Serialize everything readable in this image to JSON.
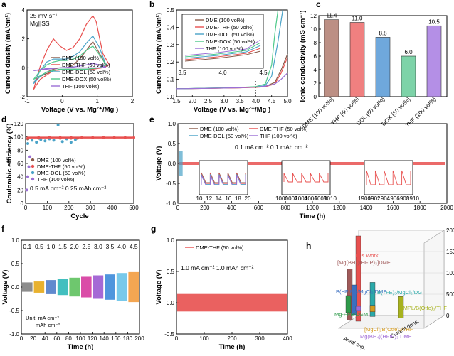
{
  "panel_letters": [
    "a",
    "b",
    "c",
    "d",
    "e",
    "f",
    "g",
    "h"
  ],
  "colors": {
    "dme": "#8b5a4a",
    "dme_thf": "#e8504f",
    "dme_dol": "#4aa3c8",
    "dme_dox": "#4ec98a",
    "thf": "#9b6fd6"
  },
  "chart_data": [
    {
      "panel": "a",
      "type": "line",
      "title": "",
      "annotations": [
        "25 mV s⁻¹",
        "Mg||SS"
      ],
      "xlabel": "Voltage (V vs. Mg²⁺/Mg )",
      "ylabel": "Current density (mA/cm²)",
      "xlim": [
        -1.2,
        2.0
      ],
      "ylim": [
        -2,
        4
      ],
      "xticks": [
        "-1",
        "0",
        "1",
        "2"
      ],
      "yticks": [
        "-2",
        "0",
        "2",
        "4"
      ],
      "legend_position": "center-right",
      "series": [
        {
          "name": "DME (100 vol%)",
          "color_key": "dme",
          "x": [
            -1.0,
            -0.8,
            -0.6,
            -0.4,
            -0.2,
            0.0,
            0.2,
            0.4,
            0.6,
            0.8,
            1.0,
            1.2,
            1.0,
            0.8,
            0.6,
            0.4,
            0.2,
            0.0,
            -0.4,
            -0.8,
            -1.0
          ],
          "y": [
            -1.0,
            -0.6,
            -0.3,
            -0.1,
            0.0,
            0.0,
            0.2,
            0.6,
            1.2,
            1.8,
            1.0,
            0.2,
            0.0,
            -0.1,
            -0.1,
            -0.1,
            -0.1,
            -0.1,
            -0.2,
            -0.6,
            -1.0
          ]
        },
        {
          "name": "DME-THF (50 vol%)",
          "color_key": "dme_thf",
          "x": [
            -1.0,
            -0.9,
            -0.8,
            -0.6,
            -0.4,
            -0.2,
            0.0,
            0.2,
            0.4,
            0.6,
            0.8,
            0.9,
            1.1,
            1.3,
            1.1,
            0.8,
            0.4,
            0.0,
            -0.4,
            -0.8,
            -1.0
          ],
          "y": [
            -1.5,
            -0.7,
            0.1,
            1.2,
            2.0,
            1.5,
            1.2,
            1.4,
            2.0,
            3.0,
            3.6,
            3.2,
            1.0,
            0.2,
            0.0,
            -0.1,
            -0.1,
            -0.1,
            -0.2,
            -0.8,
            -1.5
          ]
        },
        {
          "name": "DME-DOL (50 vol%)",
          "color_key": "dme_dol",
          "x": [
            -1.0,
            -0.8,
            -0.6,
            -0.4,
            -0.2,
            0.0,
            0.2,
            0.4,
            0.6,
            0.8,
            1.0,
            1.2,
            1.0,
            0.6,
            0.2,
            -0.2,
            -0.6,
            -0.8,
            -1.0
          ],
          "y": [
            -1.1,
            -0.2,
            0.4,
            0.6,
            0.6,
            0.6,
            0.8,
            1.1,
            1.7,
            2.2,
            1.4,
            0.2,
            0.0,
            -0.1,
            -0.1,
            -0.1,
            -0.3,
            -0.6,
            -1.1
          ]
        },
        {
          "name": "DME-DOX (50 vol%)",
          "color_key": "dme_dox",
          "x": [
            -1.0,
            -0.8,
            -0.6,
            -0.4,
            -0.2,
            0.0,
            0.2,
            0.4,
            0.6,
            0.8,
            1.0,
            1.2,
            1.0,
            0.6,
            0.2,
            -0.2,
            -0.6,
            -1.0
          ],
          "y": [
            -0.8,
            -0.2,
            0.2,
            0.4,
            0.5,
            0.5,
            0.6,
            0.8,
            1.2,
            1.5,
            0.9,
            0.2,
            0.0,
            -0.1,
            -0.1,
            -0.1,
            -0.3,
            -0.8
          ]
        },
        {
          "name": "THF (100 vol%)",
          "color_key": "thf",
          "x": [
            -1.0,
            -0.6,
            -0.2,
            0.2,
            0.6,
            0.8,
            1.0,
            1.2,
            1.0,
            0.6,
            0.2,
            -0.2,
            -0.6,
            -1.0
          ],
          "y": [
            -0.2,
            -0.1,
            0.0,
            0.05,
            0.2,
            0.3,
            0.2,
            0.05,
            0.0,
            0.0,
            0.0,
            0.0,
            -0.05,
            -0.2
          ]
        }
      ]
    },
    {
      "panel": "b",
      "type": "line",
      "xlabel": "Voltage (V vs. Mg²⁺/Mg )",
      "ylabel": "Current density (mA/cm²)",
      "xlim": [
        1.5,
        5.0
      ],
      "ylim": [
        -0.05,
        0.5
      ],
      "xticks": [
        "1.5",
        "2.0",
        "2.5",
        "3.0",
        "3.5",
        "4.0",
        "4.5",
        "5.0"
      ],
      "yticks": [
        "0.0",
        "0.1",
        "0.2",
        "0.3",
        "0.4",
        "0.5"
      ],
      "inset_xticks": [
        "3.5",
        "4.0",
        "4.5"
      ],
      "inset_xlim": [
        3.5,
        4.5
      ],
      "legend_position": "top-left",
      "series": [
        {
          "name": "DME (100 vol%)",
          "color_key": "dme",
          "x": [
            1.5,
            2.5,
            3.5,
            4.0,
            4.3,
            4.6,
            4.8,
            5.0
          ],
          "y": [
            0.0,
            0.003,
            0.006,
            0.01,
            0.015,
            0.04,
            0.12,
            0.22
          ]
        },
        {
          "name": "DME-THF (50 vol%)",
          "color_key": "dme_thf",
          "x": [
            1.5,
            2.5,
            3.5,
            4.0,
            4.3,
            4.6,
            4.8,
            5.0
          ],
          "y": [
            0.0,
            0.003,
            0.006,
            0.009,
            0.013,
            0.03,
            0.1,
            0.2
          ]
        },
        {
          "name": "DME-DOL (50 vol%)",
          "color_key": "dme_dol",
          "x": [
            1.5,
            2.5,
            3.5,
            4.0,
            4.3,
            4.5,
            4.7,
            4.85
          ],
          "y": [
            0.0,
            0.004,
            0.008,
            0.012,
            0.02,
            0.08,
            0.3,
            0.5
          ]
        },
        {
          "name": "DME-DOX (50 vol%)",
          "color_key": "dme_dox",
          "x": [
            1.5,
            2.5,
            3.5,
            4.0,
            4.3,
            4.5,
            4.6,
            4.7
          ],
          "y": [
            0.0,
            0.004,
            0.009,
            0.014,
            0.03,
            0.15,
            0.35,
            0.5
          ]
        },
        {
          "name": "THF (100 vol%)",
          "color_key": "thf",
          "x": [
            1.5,
            2.5,
            3.5,
            4.0,
            4.3,
            4.6,
            4.8,
            5.0
          ],
          "y": [
            0.0,
            0.003,
            0.007,
            0.011,
            0.016,
            0.03,
            0.06,
            0.1
          ]
        }
      ]
    },
    {
      "panel": "c",
      "type": "bar",
      "ylabel": "Ionic conductivity (mS cm⁻¹)",
      "ylim": [
        0,
        12
      ],
      "yticks": [
        "0",
        "2",
        "4",
        "6",
        "8",
        "10",
        "12"
      ],
      "categories": [
        "DME (100 vol%)",
        "THF (50 vol%)",
        "DOL (50 vol%)",
        "DOX (50 vol%)",
        "THF (100 vol%)"
      ],
      "values": [
        11.4,
        11.0,
        8.8,
        6.0,
        10.5
      ],
      "value_labels": [
        "11.4",
        "11.0",
        "8.8",
        "6.0",
        "10.5"
      ],
      "bar_colors": [
        "#bc8f84",
        "#f08080",
        "#6fa8dc",
        "#7dd3a8",
        "#b48fe6"
      ]
    },
    {
      "panel": "d",
      "type": "scatter",
      "xlabel": "Cycle",
      "ylabel": "Coulombic efficiency (%)",
      "xlim": [
        0,
        500
      ],
      "ylim": [
        0,
        120
      ],
      "xticks": [
        "0",
        "100",
        "200",
        "300",
        "400",
        "500"
      ],
      "yticks": [
        "0",
        "20",
        "40",
        "60",
        "80",
        "100",
        "120"
      ],
      "annotations": [
        "0.5 mA cm⁻²  0.25 mAh cm⁻²"
      ],
      "legend_position": "center-left",
      "series": [
        {
          "name": "DME (100 vol%)",
          "color_key": "dme",
          "x": [
            10,
            60,
            110,
            160,
            210,
            240
          ],
          "y": [
            97,
            98,
            98,
            98,
            98,
            98
          ]
        },
        {
          "name": "DME-THF (50 vol%)",
          "color_key": "dme_thf",
          "x": [
            10,
            60,
            110,
            160,
            210,
            260,
            310,
            360,
            410,
            460,
            500
          ],
          "y": [
            98,
            99,
            99,
            99,
            99,
            99,
            99,
            99,
            99,
            99,
            99
          ]
        },
        {
          "name": "DME-DOL (50 vol%)",
          "color_key": "dme_dol",
          "x": [
            10,
            30,
            50,
            70,
            90,
            110,
            130,
            150,
            170,
            190,
            210,
            230
          ],
          "y": [
            90,
            95,
            92,
            96,
            94,
            97,
            95,
            118,
            93,
            97,
            92,
            96
          ]
        },
        {
          "name": "THF (100 vol%)",
          "color_key": "thf",
          "x": [
            5,
            10,
            15,
            20
          ],
          "y": [
            20,
            40,
            55,
            70
          ]
        }
      ]
    },
    {
      "panel": "e",
      "type": "line",
      "xlabel": "Time (h)",
      "ylabel": "Voltage (V)",
      "xlim": [
        0,
        2000
      ],
      "ylim": [
        -1.0,
        1.0
      ],
      "xticks": [
        "0",
        "200",
        "400",
        "600",
        "800",
        "1000",
        "1200",
        "1400",
        "1600",
        "1800",
        "2000"
      ],
      "yticks": [
        "-1.0",
        "-0.5",
        "0.0",
        "0.5",
        "1.0"
      ],
      "annotations": [
        "0.1 mA cm⁻²  0.1 mAh cm⁻²"
      ],
      "legend_position": "top-left",
      "insets": [
        {
          "xticks": [
            "10",
            "12",
            "14",
            "16",
            "18",
            "20"
          ]
        },
        {
          "xticks": [
            "1000",
            "1002",
            "1004",
            "1006",
            "1008",
            "1010"
          ]
        },
        {
          "xticks": [
            "1900",
            "1902",
            "1904",
            "1906",
            "1908",
            "1910"
          ]
        }
      ],
      "series": [
        {
          "name": "DME (100 vol%)",
          "color_key": "dme",
          "x": [
            0,
            50
          ],
          "y": [
            0.1,
            -0.1
          ]
        },
        {
          "name": "DME-THF (50 vol%)",
          "color_key": "dme_thf",
          "x": [
            0,
            2000
          ],
          "y": [
            0.04,
            -0.04
          ]
        },
        {
          "name": "DME-DOL (50 vol%)",
          "color_key": "dme_dol",
          "x": [
            0,
            25
          ],
          "y": [
            0.3,
            -0.3
          ]
        },
        {
          "name": "THF (100 vol%)",
          "color_key": "thf",
          "x": [
            0,
            20
          ],
          "y": [
            0.3,
            -0.3
          ]
        }
      ]
    },
    {
      "panel": "f",
      "type": "line",
      "xlabel": "Time (h)",
      "ylabel": "Voltage (V)",
      "xlim": [
        0,
        200
      ],
      "ylim": [
        -1.0,
        1.0
      ],
      "xticks": [
        "0",
        "20",
        "40",
        "60",
        "80",
        "100",
        "120",
        "140",
        "160",
        "180",
        "200"
      ],
      "yticks": [
        "-1.0",
        "-0.5",
        "0.0",
        "0.5",
        "1.0"
      ],
      "annotations": [
        "Unit: mA cm⁻²",
        "mAh cm⁻²"
      ],
      "rate_labels": [
        "0.1",
        "0.5",
        "1.0",
        "1.5",
        "2.0",
        "2.5",
        "3.0",
        "3.5",
        "4.0",
        "4.5"
      ],
      "rate_amplitudes_V": [
        0.1,
        0.12,
        0.15,
        0.17,
        0.2,
        0.22,
        0.25,
        0.27,
        0.3,
        0.32
      ],
      "rate_colors": [
        "#7f7f7f",
        "#e6a817",
        "#4f7dc9",
        "#2eb8b8",
        "#5ec15e",
        "#d63a9e",
        "#9b59d0",
        "#3c8ad9",
        "#69c3e8",
        "#f39c3f"
      ]
    },
    {
      "panel": "g",
      "type": "line",
      "xlabel": "Time (h)",
      "ylabel": "Voltage (V)",
      "xlim": [
        0,
        400
      ],
      "ylim": [
        -0.5,
        1.0
      ],
      "xticks": [
        "0",
        "100",
        "200",
        "300",
        "400"
      ],
      "yticks": [
        "-0.5",
        "0.0",
        "0.5",
        "1.0"
      ],
      "annotations": [
        "1.0 mA cm⁻²  1.0 mAh cm⁻²"
      ],
      "legend_position": "top-left",
      "series": [
        {
          "name": "DME-THF (50 vol%)",
          "color_key": "dme_thf",
          "x": [
            0,
            100,
            200,
            300,
            400
          ],
          "y": [
            0.12,
            0.1,
            0.1,
            0.11,
            0.12
          ]
        }
      ]
    },
    {
      "panel": "h",
      "type": "bar",
      "zlabel": "Cycle time (h)",
      "axis_labels": [
        "Areal cap.",
        "Current dens."
      ],
      "zticks": [
        "0",
        "500",
        "1000",
        "1500",
        "2000"
      ],
      "zlim": [
        0,
        2000
      ],
      "categories": [
        "This Work",
        "[Mg(BH₄)(HFIP)₃]DME",
        "B(HFIP)₃/MgCl₂/DME",
        "B(TFE)₃/MgCl₂/DG",
        "Mg-FPB/DGM",
        "[MgCl]₂B(Otfe)₄/THF",
        "Mg(BH₄)(HFIP)₃ DME",
        "TMPL/B(Otfe)₃/THF"
      ],
      "values": [
        2000,
        1200,
        700,
        800,
        400,
        150,
        100,
        500
      ],
      "bar_colors": [
        "#e8504f",
        "#a05a5a",
        "#3a6fc0",
        "#2aa9a9",
        "#2e9a4a",
        "#d49a1e",
        "#a06bd6",
        "#a7b21e"
      ]
    }
  ]
}
